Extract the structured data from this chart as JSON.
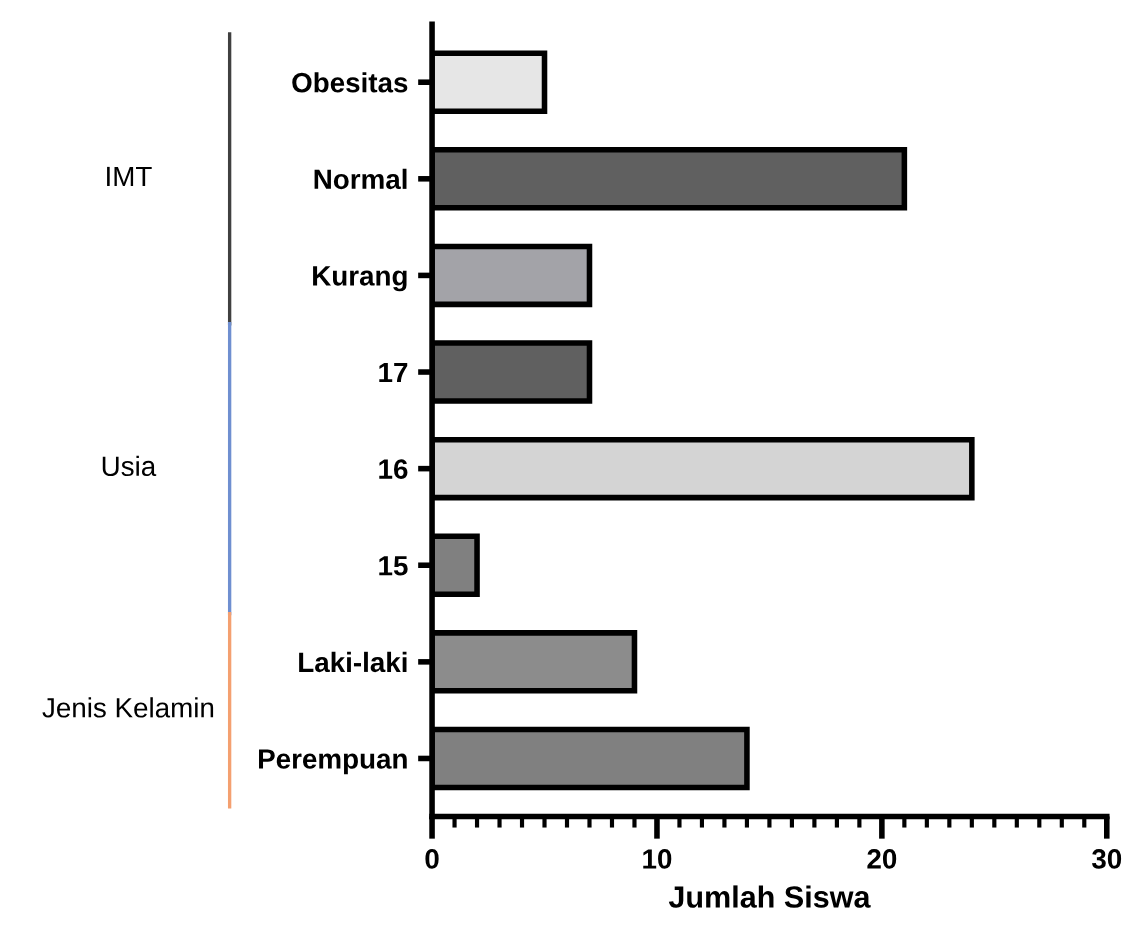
{
  "chart_data": {
    "type": "bar",
    "orientation": "horizontal",
    "xlabel": "Jumlah Siswa",
    "categories": [
      "Obesitas",
      "Normal",
      "Kurang",
      "17",
      "16",
      "15",
      "Laki-laki",
      "Perempuan"
    ],
    "values": [
      5,
      21,
      7,
      7,
      24,
      2,
      9,
      14
    ],
    "colors": [
      "#e6e6e6",
      "#606060",
      "#a3a3a8",
      "#606060",
      "#d4d4d4",
      "#808080",
      "#8c8c8c",
      "#808080"
    ],
    "xlim": [
      0,
      30
    ],
    "xticks": [
      0,
      10,
      20,
      30
    ],
    "grid": false,
    "legend": false,
    "annotations": [
      "IMT",
      "Usia",
      "Jenis Kelamin"
    ]
  }
}
